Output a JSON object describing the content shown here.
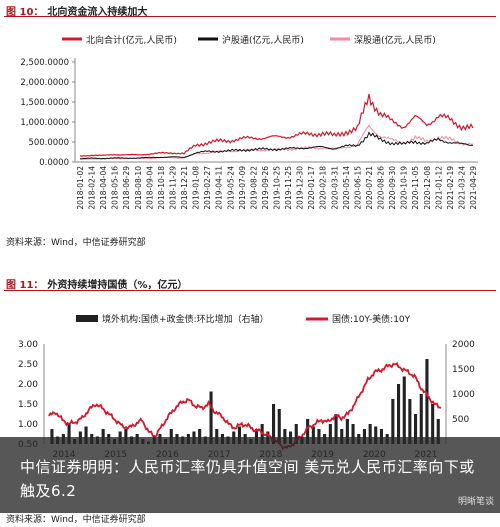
{
  "fig10": {
    "title_num": "图 10：",
    "title_text": "北向资金流入持续加大",
    "source": "资料来源：Wind，中信证券研究部"
  },
  "fig11": {
    "title_num": "图 11：",
    "title_text": "外资持续增持国债（%，亿元）",
    "source": "资料来源：Wind，中信证券研究部"
  },
  "overlay": {
    "headline": "中信证券明明：人民币汇率仍具升值空间 美元兑人民币汇率向下或触及6.2",
    "watermark": "明晰笔谈"
  },
  "colors": {
    "red": "#d7172b",
    "black": "#111111",
    "pink": "#f28ca0",
    "bar": "#222222"
  },
  "chart_data": [
    {
      "type": "line",
      "legend_position": "top",
      "y_ticks": [
        "0.0000",
        "500.0000",
        "1,000.0000",
        "1,500.0000",
        "2,000.0000",
        "2,500.0000"
      ],
      "ylim": [
        0,
        2500
      ],
      "x_labels": [
        "2018-01-02",
        "2018-02-14",
        "2018-04-04",
        "2018-05-16",
        "2018-06-29",
        "2018-08-10",
        "2018-09-04",
        "2018-10-18",
        "2018-11-29",
        "2018-12-21",
        "2019-01-08",
        "2019-02-27",
        "2019-04-11",
        "2019-05-24",
        "2019-07-09",
        "2019-08-22",
        "2019-09-26",
        "2019-10-25",
        "2019-11-25",
        "2019-12-30",
        "2020-01-17",
        "2020-02-18",
        "2020-03-31",
        "2020-05-14",
        "2020-06-15",
        "2020-07-21",
        "2020-08-26",
        "2020-09-30",
        "2020-10-19",
        "2020-11-05",
        "2020-12-08",
        "2021-01-12",
        "2021-02-19",
        "2021-03-24",
        "2021-04-29"
      ],
      "series": [
        {
          "name": "北向合计(亿元,人民币)",
          "color": "#d7172b",
          "values": [
            150,
            170,
            160,
            190,
            175,
            180,
            200,
            220,
            230,
            210,
            420,
            480,
            520,
            540,
            580,
            600,
            610,
            620,
            640,
            680,
            700,
            720,
            650,
            760,
            820,
            1650,
            1200,
            1000,
            900,
            1100,
            950,
            1150,
            1050,
            900,
            850
          ]
        },
        {
          "name": "沪股通(亿元,人民币)",
          "color": "#111111",
          "values": [
            80,
            95,
            90,
            100,
            95,
            100,
            110,
            120,
            125,
            115,
            230,
            260,
            270,
            280,
            300,
            310,
            320,
            320,
            330,
            350,
            360,
            370,
            340,
            390,
            420,
            700,
            550,
            480,
            440,
            520,
            460,
            560,
            500,
            440,
            420
          ]
        },
        {
          "name": "深股通(亿元,人民币)",
          "color": "#f28ca0",
          "values": [
            70,
            80,
            75,
            90,
            85,
            90,
            95,
            105,
            110,
            100,
            200,
            230,
            260,
            270,
            290,
            300,
            300,
            310,
            320,
            340,
            350,
            360,
            320,
            380,
            420,
            900,
            650,
            540,
            480,
            600,
            520,
            620,
            560,
            480,
            450
          ]
        }
      ]
    },
    {
      "type": "bar+line",
      "legend_position": "top",
      "x_labels": [
        "2014",
        "2015",
        "2016",
        "2017",
        "2018",
        "2019",
        "2020",
        "2021"
      ],
      "y_left_ticks": [
        "0.50",
        "1.00",
        "1.50",
        "2.00",
        "2.50",
        "3.00"
      ],
      "y_left_lim": [
        0.5,
        3.0
      ],
      "y_right_ticks": [
        "500",
        "1000",
        "1500",
        "2000"
      ],
      "y_right_lim": [
        0,
        2000
      ],
      "series": [
        {
          "name": "境外机构:国债+政金债:环比增加（右轴）",
          "kind": "bar",
          "axis": "right",
          "color": "#222222",
          "values": [
            300,
            150,
            200,
            400,
            100,
            250,
            350,
            200,
            150,
            300,
            200,
            100,
            250,
            300,
            150,
            200,
            100,
            50,
            150,
            200,
            100,
            300,
            200,
            150,
            200,
            250,
            300,
            150,
            1050,
            300,
            200,
            150,
            250,
            350,
            200,
            100,
            300,
            400,
            250,
            800,
            700,
            300,
            250,
            400,
            150,
            500,
            350,
            300,
            200,
            400,
            600,
            300,
            500,
            400,
            200,
            300,
            400,
            350,
            300,
            200,
            900,
            1200,
            1350,
            900,
            600,
            1000,
            1700,
            800,
            500
          ]
        },
        {
          "name": "国债:10Y-美债:10Y",
          "kind": "line",
          "axis": "left",
          "color": "#d7172b",
          "values": [
            1.2,
            1.3,
            1.1,
            1.0,
            1.05,
            1.15,
            1.35,
            1.5,
            1.4,
            1.25,
            1.1,
            0.95,
            0.9,
            1.0,
            1.1,
            0.8,
            0.7,
            0.95,
            1.2,
            1.4,
            1.55,
            1.6,
            1.45,
            1.4,
            1.5,
            1.3,
            1.2,
            1.0,
            0.9,
            1.0,
            0.95,
            0.85,
            0.8,
            0.7,
            0.6,
            0.45,
            0.4,
            0.55,
            0.7,
            0.9,
            1.0,
            1.1,
            1.05,
            1.2,
            1.15,
            1.25,
            1.5,
            1.8,
            2.1,
            2.3,
            2.35,
            2.45,
            2.5,
            2.4,
            2.3,
            2.2,
            1.9,
            1.7,
            1.5,
            1.4
          ]
        }
      ]
    }
  ]
}
